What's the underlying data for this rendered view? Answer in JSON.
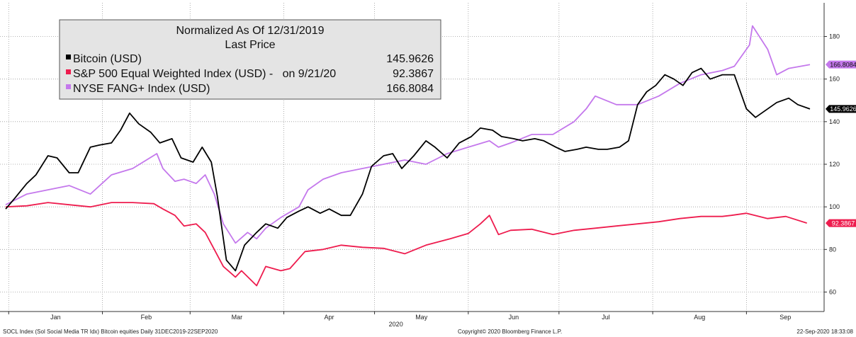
{
  "chart_data": {
    "type": "line",
    "title": "Normalized As Of 12/31/2019",
    "subtitle": "Last Price",
    "x_months": [
      "Jan",
      "Feb",
      "Mar",
      "Apr",
      "May",
      "Jun",
      "Jul",
      "Aug",
      "Sep"
    ],
    "x_year": "2020",
    "x_range": [
      "2019-12-31",
      "2020-09-22"
    ],
    "y_ticks": [
      60,
      80,
      100,
      120,
      140,
      160,
      180
    ],
    "ylim": [
      55,
      190
    ],
    "y_axis_side": "right",
    "grid": true,
    "legend_position": "top-left",
    "series": [
      {
        "name": "Bitcoin (USD)",
        "last_value_text": "145.9626",
        "color": "#000000",
        "x": [
          "2019-12-31",
          "2020-01-03",
          "2020-01-07",
          "2020-01-10",
          "2020-01-14",
          "2020-01-17",
          "2020-01-21",
          "2020-01-24",
          "2020-01-28",
          "2020-01-31",
          "2020-02-04",
          "2020-02-07",
          "2020-02-10",
          "2020-02-13",
          "2020-02-17",
          "2020-02-20",
          "2020-02-24",
          "2020-02-27",
          "2020-03-02",
          "2020-03-05",
          "2020-03-08",
          "2020-03-10",
          "2020-03-12",
          "2020-03-13",
          "2020-03-16",
          "2020-03-19",
          "2020-03-23",
          "2020-03-26",
          "2020-03-30",
          "2020-04-02",
          "2020-04-06",
          "2020-04-09",
          "2020-04-13",
          "2020-04-16",
          "2020-04-20",
          "2020-04-23",
          "2020-04-27",
          "2020-04-30",
          "2020-05-04",
          "2020-05-07",
          "2020-05-10",
          "2020-05-14",
          "2020-05-18",
          "2020-05-21",
          "2020-05-25",
          "2020-05-29",
          "2020-06-02",
          "2020-06-05",
          "2020-06-09",
          "2020-06-12",
          "2020-06-16",
          "2020-06-19",
          "2020-06-23",
          "2020-06-26",
          "2020-06-30",
          "2020-07-03",
          "2020-07-07",
          "2020-07-10",
          "2020-07-14",
          "2020-07-17",
          "2020-07-21",
          "2020-07-24",
          "2020-07-27",
          "2020-07-30",
          "2020-08-02",
          "2020-08-05",
          "2020-08-08",
          "2020-08-11",
          "2020-08-14",
          "2020-08-17",
          "2020-08-20",
          "2020-08-24",
          "2020-08-28",
          "2020-09-01",
          "2020-09-04",
          "2020-09-08",
          "2020-09-11",
          "2020-09-15",
          "2020-09-18",
          "2020-09-22"
        ],
        "values": [
          99,
          104,
          111,
          115,
          124,
          123,
          116,
          116,
          128,
          129,
          130,
          136,
          144,
          139,
          135,
          130,
          132,
          123,
          121,
          128,
          121,
          105,
          85,
          75,
          70,
          82,
          88,
          92,
          90,
          95,
          98,
          100,
          97,
          99,
          96,
          96,
          106,
          119,
          124,
          125,
          118,
          124,
          131,
          128,
          123,
          130,
          133,
          137,
          136,
          133,
          132,
          131,
          132,
          131,
          128,
          126,
          127,
          128,
          127,
          127,
          128,
          131,
          148,
          154,
          157,
          162,
          160,
          157,
          163,
          165,
          160,
          162,
          162,
          146,
          142,
          146,
          149,
          151,
          148,
          145.96
        ]
      },
      {
        "name": "S&P 500 Equal Weighted Index (USD) -   on 9/21/20",
        "last_value_text": "92.3867",
        "color": "#ee1c4e",
        "x": [
          "2019-12-31",
          "2020-01-07",
          "2020-01-14",
          "2020-01-21",
          "2020-01-28",
          "2020-02-04",
          "2020-02-11",
          "2020-02-18",
          "2020-02-21",
          "2020-02-25",
          "2020-02-28",
          "2020-03-03",
          "2020-03-06",
          "2020-03-09",
          "2020-03-12",
          "2020-03-16",
          "2020-03-18",
          "2020-03-23",
          "2020-03-26",
          "2020-03-31",
          "2020-04-03",
          "2020-04-08",
          "2020-04-14",
          "2020-04-20",
          "2020-04-27",
          "2020-05-04",
          "2020-05-11",
          "2020-05-18",
          "2020-05-26",
          "2020-06-01",
          "2020-06-05",
          "2020-06-08",
          "2020-06-11",
          "2020-06-15",
          "2020-06-22",
          "2020-06-29",
          "2020-07-06",
          "2020-07-13",
          "2020-07-20",
          "2020-07-27",
          "2020-08-03",
          "2020-08-10",
          "2020-08-17",
          "2020-08-24",
          "2020-08-27",
          "2020-09-01",
          "2020-09-08",
          "2020-09-14",
          "2020-09-21"
        ],
        "values": [
          100,
          100.5,
          102,
          101,
          100,
          102,
          102,
          101.5,
          99,
          96,
          91,
          92,
          88,
          80,
          72,
          67,
          70,
          63,
          72,
          70,
          71,
          79,
          80,
          82,
          81,
          80.5,
          78,
          82,
          85,
          87.5,
          92,
          96,
          87,
          89,
          89.5,
          87,
          89,
          90,
          91,
          92,
          93,
          94.5,
          95.5,
          95.5,
          96,
          97,
          94.5,
          95.5,
          92.3867
        ]
      },
      {
        "name": "NYSE FANG+ Index (USD)",
        "last_value_text": "166.8084",
        "color": "#c478ec",
        "x": [
          "2019-12-31",
          "2020-01-07",
          "2020-01-14",
          "2020-01-21",
          "2020-01-28",
          "2020-02-04",
          "2020-02-11",
          "2020-02-19",
          "2020-02-21",
          "2020-02-25",
          "2020-02-28",
          "2020-03-03",
          "2020-03-06",
          "2020-03-09",
          "2020-03-12",
          "2020-03-16",
          "2020-03-20",
          "2020-03-23",
          "2020-03-26",
          "2020-03-31",
          "2020-04-06",
          "2020-04-09",
          "2020-04-14",
          "2020-04-20",
          "2020-04-27",
          "2020-05-04",
          "2020-05-11",
          "2020-05-18",
          "2020-05-25",
          "2020-06-01",
          "2020-06-08",
          "2020-06-11",
          "2020-06-15",
          "2020-06-22",
          "2020-06-29",
          "2020-07-06",
          "2020-07-10",
          "2020-07-13",
          "2020-07-20",
          "2020-07-27",
          "2020-08-03",
          "2020-08-10",
          "2020-08-17",
          "2020-08-24",
          "2020-08-28",
          "2020-09-02",
          "2020-09-03",
          "2020-09-08",
          "2020-09-11",
          "2020-09-15",
          "2020-09-22"
        ],
        "values": [
          101,
          106,
          108,
          110,
          106,
          115,
          118,
          125,
          118,
          112,
          113,
          111,
          115,
          106,
          92,
          83,
          88,
          85,
          90,
          95,
          100,
          108,
          113,
          116,
          118,
          120,
          122,
          120,
          125,
          128,
          131,
          128,
          130,
          134,
          134,
          140,
          146,
          152,
          148,
          148,
          152,
          158,
          162,
          164,
          166,
          176,
          185,
          174,
          162,
          165,
          166.8084
        ]
      }
    ]
  },
  "footer": {
    "left": "SOCL Index (Sol Social Media TR Idx) Bitcoin equities  Daily 31DEC2019-22SEP2020",
    "center": "Copyright© 2020 Bloomberg Finance L.P.",
    "right": "22-Sep-2020 18:33:08"
  }
}
